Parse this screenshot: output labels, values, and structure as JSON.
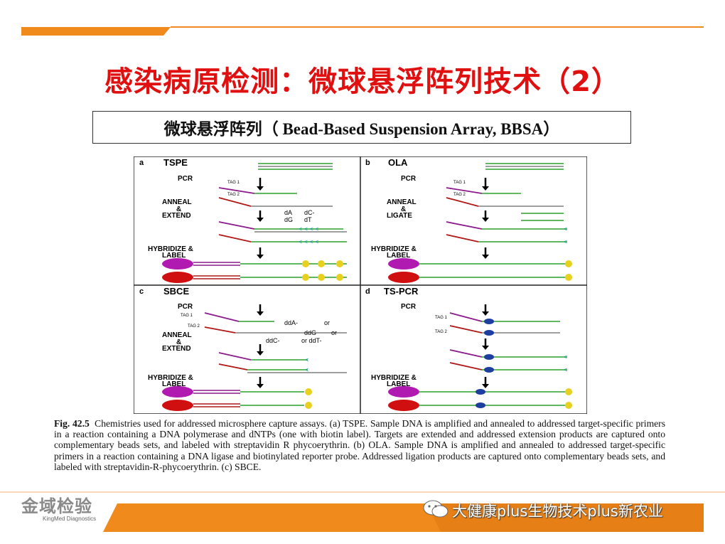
{
  "slide": {
    "title": "感染病原检测：微球悬浮阵列技术（2）",
    "subtitle": "微球悬浮阵列（ Bead-Based Suspension Array, BBSA）"
  },
  "figure": {
    "panels": [
      {
        "letter": "a",
        "name": "TSPE",
        "steps": [
          "PCR",
          "ANNEAL",
          "&",
          "EXTEND",
          "HYBRIDIZE &",
          "LABEL"
        ],
        "tags": [
          "TAG 1",
          "TAG 2"
        ],
        "nucleotides": [
          "dA",
          "dC-",
          "dG",
          "dT"
        ]
      },
      {
        "letter": "b",
        "name": "OLA",
        "steps": [
          "PCR",
          "ANNEAL",
          "&",
          "LIGATE",
          "HYBRIDIZE &",
          "LABEL"
        ],
        "tags": [
          "TAG 1",
          "TAG 2"
        ]
      },
      {
        "letter": "c",
        "name": "SBCE",
        "steps": [
          "PCR",
          "ANNEAL",
          "&",
          "EXTEND",
          "HYBRIDIZE &",
          "LABEL"
        ],
        "tags": [
          "TAG 1",
          "TAG 2"
        ],
        "nucleotides": [
          "ddA-",
          "or",
          "ddG",
          "or",
          "ddC-",
          "or ddT-"
        ]
      },
      {
        "letter": "d",
        "name": "TS-PCR",
        "steps": [
          "PCR",
          "HYBRIDIZE &",
          "LABEL"
        ],
        "tags": [
          "TAG 1",
          "TAG 2"
        ]
      }
    ],
    "caption_label": "Fig. 42.5",
    "caption_text": "Chemistries used for addressed microsphere capture assays. (a) TSPE. Sample DNA is amplified and annealed to addressed target-specific primers in a reaction containing a DNA polymerase and dNTPs (one with biotin label). Targets are extended and addressed extension products are captured onto complementary beads sets, and labeled with streptavidin R phycoerythrin. (b) OLA. Sample DNA is amplified and annealed to addressed target-specific primers in a reaction containing a DNA ligase and biotinylated reporter probe. Addressed ligation products are captured onto complementary beads sets, and labeled with streptavidin-R-phycoerythrin. (c) SBCE."
  },
  "logo": {
    "name": "金域检验",
    "sub": "KingMed Diagnostics"
  },
  "watermark": "大健康plus生物技术plus新农业",
  "colors": {
    "title": "#e01010",
    "accent_orange": "#f08a1c",
    "purple": "#8b1a8b",
    "red_strand": "#b01818",
    "green": "#2ca02c",
    "bead_purple": "#b01ab0",
    "bead_red": "#d01010"
  }
}
